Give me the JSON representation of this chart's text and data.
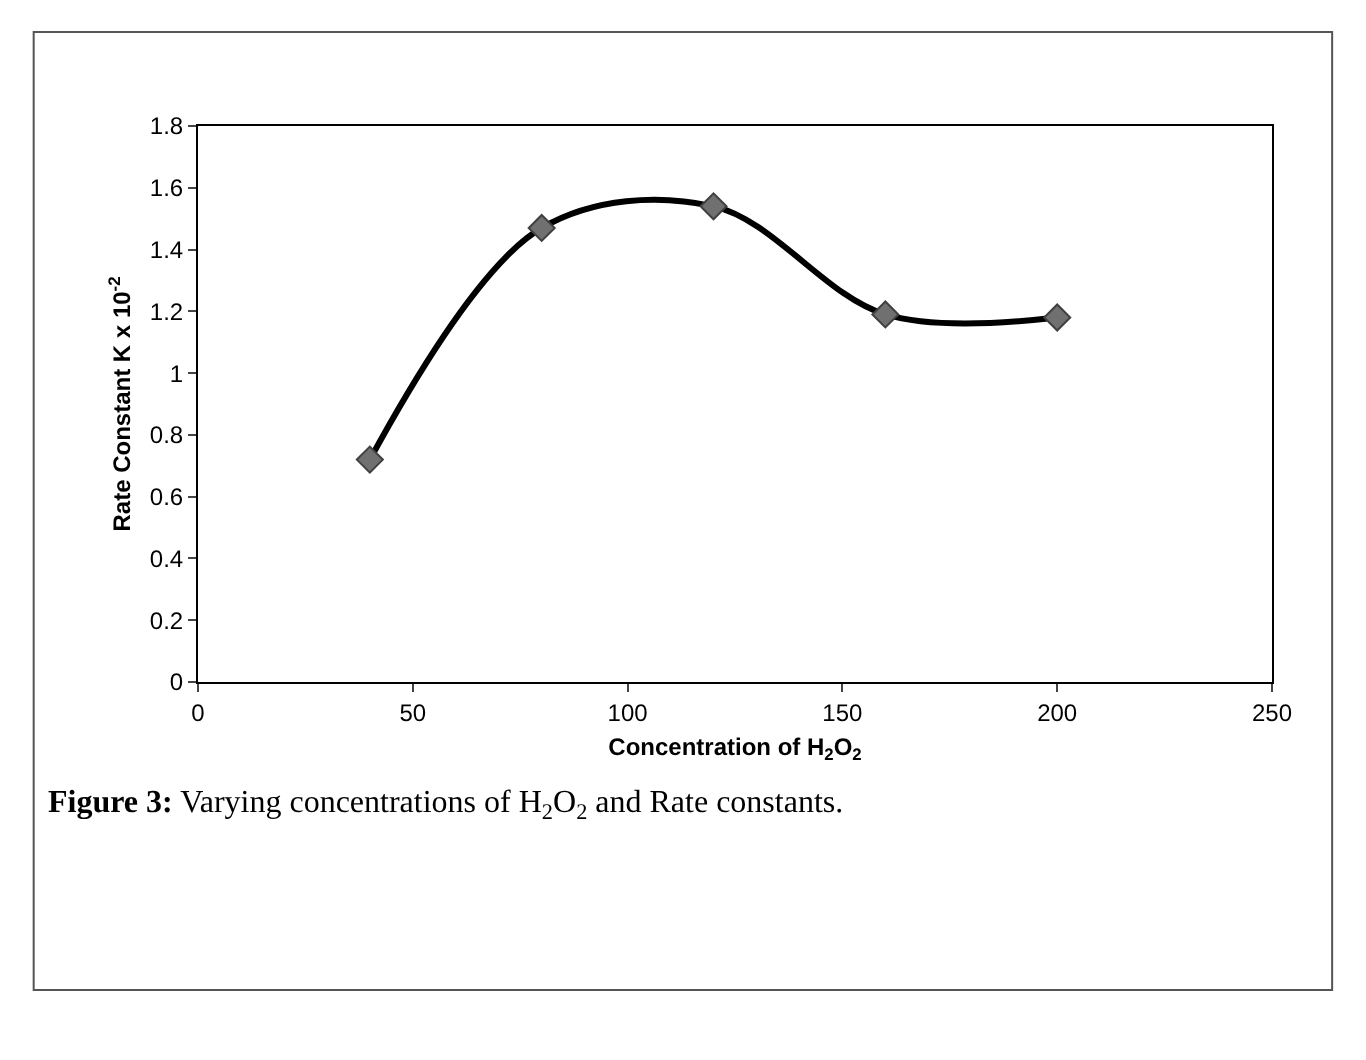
{
  "chart_data": {
    "type": "line",
    "xlabel": "Concentration of H$_{2}$O$_{2}$",
    "ylabel": "Rate Constant K x 10$^{-2}$",
    "x": [
      40,
      80,
      120,
      160,
      200
    ],
    "series": [
      {
        "color": "#000000",
        "values": [
          0.72,
          1.47,
          1.54,
          1.19,
          1.18
        ]
      }
    ],
    "xlim": [
      0,
      250
    ],
    "xticks": [
      0,
      50,
      100,
      150,
      200,
      250
    ],
    "ylim": [
      0,
      1.8
    ],
    "yticks": [
      0,
      0.2,
      0.4,
      0.6,
      0.8,
      1,
      1.2,
      1.4,
      1.6,
      1.8
    ],
    "marker": "diamond",
    "line_style": "solid",
    "annotations": [
      "Figure 3: Varying concentrations of H$_{2}$O$_{2}$ and Rate constants."
    ]
  }
}
